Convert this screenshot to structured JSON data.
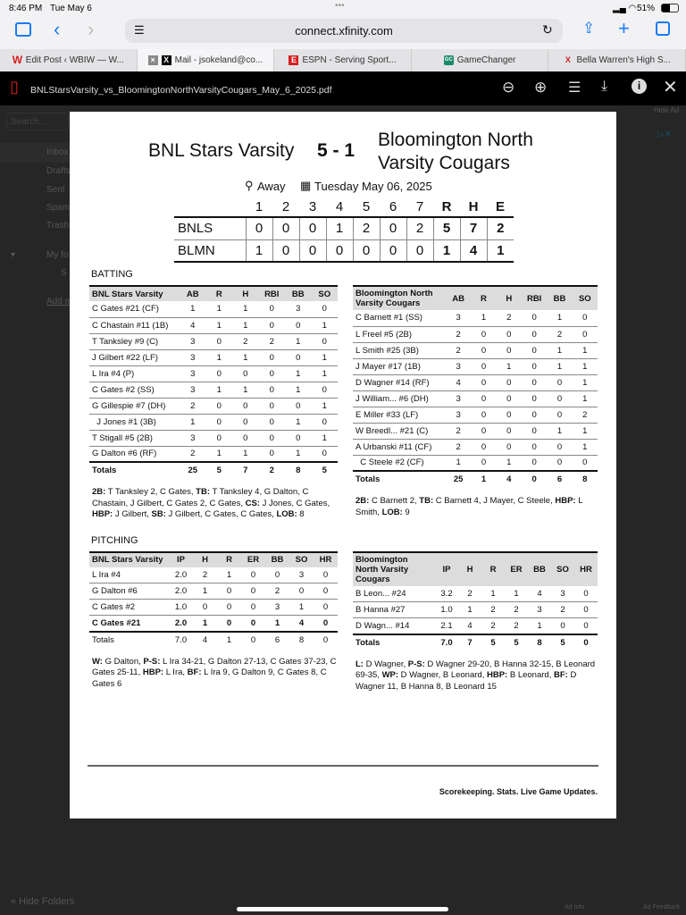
{
  "status": {
    "time": "8:46 PM",
    "date": "Tue May 6",
    "battery": "51%"
  },
  "browser": {
    "url": "connect.xfinity.com",
    "tabs": [
      {
        "icon": "W",
        "label": "Edit Post ‹ WBIW — W..."
      },
      {
        "icon": "X",
        "label": "Mail - jsokeland@co..."
      },
      {
        "icon": "E",
        "label": "ESPN - Serving Sport..."
      },
      {
        "icon": "GC",
        "label": "GameChanger"
      },
      {
        "icon": "X",
        "label": "Bella Warren's High S..."
      }
    ]
  },
  "pdf": {
    "filename": "BNLStarsVarsity_vs_BloomingtonNorthVarsityCougars_May_6_2025.pdf"
  },
  "mail_bg": {
    "search": "Search...",
    "folders": [
      "Inbox",
      "Drafts",
      "Sent",
      "Spam",
      "Trash",
      "My fo",
      "S",
      "Add m"
    ],
    "hide_folders": "« Hide Folders",
    "hide_ad": "Hide Ad",
    "ad_info": "Ad Info",
    "ad_feedback": "Ad Feedback"
  },
  "game": {
    "home": "BNL Stars Varsity",
    "score": "5 - 1",
    "away_line1": "Bloomington North",
    "away_line2": "Varsity Cougars",
    "location": "Away",
    "date": "Tuesday May 06, 2025"
  },
  "linescore": {
    "headers": [
      "1",
      "2",
      "3",
      "4",
      "5",
      "6",
      "7",
      "R",
      "H",
      "E"
    ],
    "rows": [
      {
        "team": "BNLS",
        "vals": [
          "0",
          "0",
          "0",
          "1",
          "2",
          "0",
          "2",
          "5",
          "7",
          "2"
        ]
      },
      {
        "team": "BLMN",
        "vals": [
          "1",
          "0",
          "0",
          "0",
          "0",
          "0",
          "0",
          "1",
          "4",
          "1"
        ]
      }
    ]
  },
  "batting": {
    "title": "BATTING",
    "left": {
      "headers": [
        "BNL Stars Varsity",
        "AB",
        "R",
        "H",
        "RBI",
        "BB",
        "SO"
      ],
      "rows": [
        [
          "C Gates #21 (CF)",
          "1",
          "1",
          "1",
          "0",
          "3",
          "0"
        ],
        [
          "C Chastain #11 (1B)",
          "4",
          "1",
          "1",
          "0",
          "0",
          "1"
        ],
        [
          "T Tanksley #9 (C)",
          "3",
          "0",
          "2",
          "2",
          "1",
          "0"
        ],
        [
          "J Gilbert #22 (LF)",
          "3",
          "1",
          "1",
          "0",
          "0",
          "1"
        ],
        [
          "L Ira #4 (P)",
          "3",
          "0",
          "0",
          "0",
          "1",
          "1"
        ],
        [
          "C Gates #2 (SS)",
          "3",
          "1",
          "1",
          "0",
          "1",
          "0"
        ],
        [
          "G Gillespie #7 (DH)",
          "2",
          "0",
          "0",
          "0",
          "0",
          "1"
        ],
        [
          "  J Jones #1 (3B)",
          "1",
          "0",
          "0",
          "0",
          "1",
          "0"
        ],
        [
          "T Stigall #5 (2B)",
          "3",
          "0",
          "0",
          "0",
          "0",
          "1"
        ],
        [
          "G Dalton #6 (RF)",
          "2",
          "1",
          "1",
          "0",
          "1",
          "0"
        ]
      ],
      "totals": [
        "Totals",
        "25",
        "5",
        "7",
        "2",
        "8",
        "5"
      ],
      "notes": [
        [
          "2B:",
          " T Tanksley 2, C Gates, "
        ],
        [
          "TB:",
          " T Tanksley 4, G Dalton, C Chastain, J Gilbert, C Gates 2, C Gates, "
        ],
        [
          "CS:",
          " J Jones, C Gates, "
        ],
        [
          "HBP:",
          " J Gilbert, "
        ],
        [
          "SB:",
          " J Gilbert, C Gates, C Gates, "
        ],
        [
          "LOB:",
          " 8"
        ]
      ]
    },
    "right": {
      "headers": [
        "Bloomington North Varsity Cougars",
        "AB",
        "R",
        "H",
        "RBI",
        "BB",
        "SO"
      ],
      "rows": [
        [
          "C Barnett #1 (SS)",
          "3",
          "1",
          "2",
          "0",
          "1",
          "0"
        ],
        [
          "L Freel #5 (2B)",
          "2",
          "0",
          "0",
          "0",
          "2",
          "0"
        ],
        [
          "L Smith #25 (3B)",
          "2",
          "0",
          "0",
          "0",
          "1",
          "1"
        ],
        [
          "J Mayer #17 (1B)",
          "3",
          "0",
          "1",
          "0",
          "1",
          "1"
        ],
        [
          "D Wagner #14 (RF)",
          "4",
          "0",
          "0",
          "0",
          "0",
          "1"
        ],
        [
          "J William... #6 (DH)",
          "3",
          "0",
          "0",
          "0",
          "0",
          "1"
        ],
        [
          "E Miller #33 (LF)",
          "3",
          "0",
          "0",
          "0",
          "0",
          "2"
        ],
        [
          "W Breedl... #21 (C)",
          "2",
          "0",
          "0",
          "0",
          "1",
          "1"
        ],
        [
          "A Urbanski #11 (CF)",
          "2",
          "0",
          "0",
          "0",
          "0",
          "1"
        ],
        [
          "  C Steele #2 (CF)",
          "1",
          "0",
          "1",
          "0",
          "0",
          "0"
        ]
      ],
      "totals": [
        "Totals",
        "25",
        "1",
        "4",
        "0",
        "6",
        "8"
      ],
      "notes": [
        [
          "2B:",
          " C Barnett 2, "
        ],
        [
          "TB:",
          " C Barnett 4, J Mayer, C Steele, "
        ],
        [
          "HBP:",
          " L Smith, "
        ],
        [
          "LOB:",
          " 9"
        ]
      ]
    }
  },
  "pitching": {
    "title": "PITCHING",
    "left": {
      "headers": [
        "BNL Stars Varsity",
        "IP",
        "H",
        "R",
        "ER",
        "BB",
        "SO",
        "HR"
      ],
      "rows": [
        [
          "L Ira #4",
          "2.0",
          "2",
          "1",
          "0",
          "0",
          "3",
          "0"
        ],
        [
          "G Dalton #6",
          "2.0",
          "1",
          "0",
          "0",
          "2",
          "0",
          "0"
        ],
        [
          "C Gates #2",
          "1.0",
          "0",
          "0",
          "0",
          "3",
          "1",
          "0"
        ],
        [
          "C Gates #21",
          "2.0",
          "1",
          "0",
          "0",
          "1",
          "4",
          "0"
        ]
      ],
      "bold_last": true,
      "totals": [
        "Totals",
        "7.0",
        "4",
        "1",
        "0",
        "6",
        "8",
        "0"
      ],
      "notes": [
        [
          "W:",
          " G Dalton, "
        ],
        [
          "P-S:",
          " L Ira 34-21, G Dalton 27-13, C Gates 37-23, C Gates 25-11, "
        ],
        [
          "HBP:",
          " L Ira, "
        ],
        [
          "BF:",
          " L Ira 9, G Dalton 9, C Gates 8, C Gates 6"
        ]
      ]
    },
    "right": {
      "headers": [
        "Bloomington North Varsity Cougars",
        "IP",
        "H",
        "R",
        "ER",
        "BB",
        "SO",
        "HR"
      ],
      "rows": [
        [
          "B Leon... #24",
          "3.2",
          "2",
          "1",
          "1",
          "4",
          "3",
          "0"
        ],
        [
          "B Hanna #27",
          "1.0",
          "1",
          "2",
          "2",
          "3",
          "2",
          "0"
        ],
        [
          "D Wagn... #14",
          "2.1",
          "4",
          "2",
          "2",
          "1",
          "0",
          "0"
        ]
      ],
      "bold_totals": true,
      "totals": [
        "Totals",
        "7.0",
        "7",
        "5",
        "5",
        "8",
        "5",
        "0"
      ],
      "notes": [
        [
          "L:",
          " D Wagner, "
        ],
        [
          "P-S:",
          " D Wagner 29-20, B Hanna 32-15, B Leonard 69-35, "
        ],
        [
          "WP:",
          " D Wagner, B Leonard, "
        ],
        [
          "HBP:",
          " B Leonard, "
        ],
        [
          "BF:",
          " D Wagner 11, B Hanna 8, B Leonard 15"
        ]
      ]
    }
  },
  "footer": {
    "tagline": "Scorekeeping. Stats. Live Game Updates."
  }
}
